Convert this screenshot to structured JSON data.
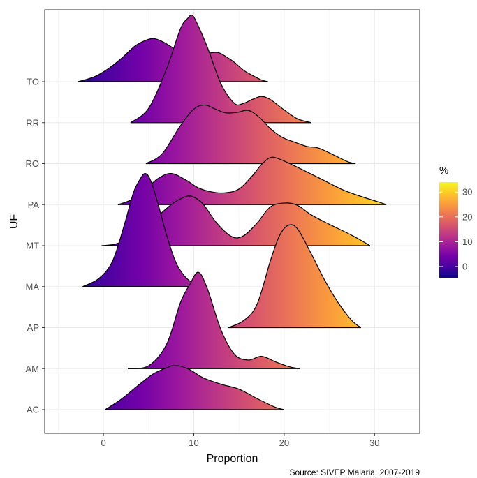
{
  "chart_data": {
    "type": "ridgeline",
    "title": "",
    "xlabel": "Proportion",
    "ylabel": "UF",
    "xlim": [
      -6.5,
      35
    ],
    "x_ticks": [
      0,
      10,
      20,
      30
    ],
    "categories": [
      "AC",
      "AM",
      "AP",
      "MA",
      "MT",
      "PA",
      "RO",
      "RR",
      "TO"
    ],
    "grid": true,
    "fill_scale": {
      "title": "%",
      "palette": "plasma",
      "range": [
        -4.5,
        34
      ],
      "ticks": [
        0,
        10,
        20,
        30
      ],
      "colors": [
        "#0d0887",
        "#46039f",
        "#7201a8",
        "#9c179e",
        "#bd3786",
        "#d8576b",
        "#ed7953",
        "#fb9f3a",
        "#fdca26",
        "#f0f921"
      ]
    },
    "caption": "Source: SIVEP Malaria. 2007-2019",
    "series": [
      {
        "name": "AC",
        "x": [
          0.2,
          2,
          4,
          5.5,
          7,
          8,
          9.5,
          11,
          13,
          15,
          17,
          19,
          20
        ],
        "height": [
          0,
          0.26,
          0.62,
          0.87,
          1.02,
          1.08,
          0.98,
          0.78,
          0.62,
          0.5,
          0.27,
          0.06,
          0
        ]
      },
      {
        "name": "AM",
        "x": [
          2.7,
          5,
          7,
          8.5,
          9.5,
          10.5,
          11.5,
          13,
          14.5,
          16,
          17.5,
          19,
          20.5,
          21.7
        ],
        "height": [
          0,
          0.07,
          0.6,
          1.6,
          2.03,
          2.35,
          1.95,
          0.95,
          0.35,
          0.21,
          0.3,
          0.17,
          0.05,
          0
        ]
      },
      {
        "name": "AP",
        "x": [
          13.8,
          15.5,
          17,
          18.5,
          19.5,
          20.5,
          21.5,
          23,
          24.5,
          26,
          27.5,
          28.5
        ],
        "height": [
          0,
          0.17,
          0.57,
          1.65,
          2.25,
          2.5,
          2.4,
          1.8,
          1.15,
          0.6,
          0.17,
          0
        ]
      },
      {
        "name": "MA",
        "x": [
          -2.3,
          -0.5,
          1,
          2.3,
          3.3,
          4,
          4.6,
          5.2,
          6,
          7,
          8,
          9,
          10,
          11
        ],
        "height": [
          0,
          0.2,
          0.62,
          1.5,
          2.28,
          2.6,
          2.76,
          2.6,
          2.05,
          1.25,
          0.6,
          0.25,
          0.08,
          0
        ]
      },
      {
        "name": "MT",
        "x": [
          -0.2,
          1.5,
          3.5,
          5.5,
          7.5,
          8.8,
          9.8,
          11,
          12.5,
          14.2,
          15.5,
          17,
          18.5,
          20.2,
          21.5,
          23,
          25,
          27.5,
          29.5
        ],
        "height": [
          0,
          0.05,
          0.26,
          0.62,
          1,
          1.17,
          1.2,
          1.02,
          0.56,
          0.22,
          0.24,
          0.55,
          0.95,
          1.04,
          0.98,
          0.75,
          0.52,
          0.25,
          0
        ]
      },
      {
        "name": "PA",
        "x": [
          1.6,
          3,
          4.5,
          6,
          7.5,
          9.2,
          10.5,
          12,
          13.5,
          15,
          16.5,
          17.5,
          18.5,
          19.5,
          21,
          22.5,
          24.5,
          26.5,
          28.5,
          30.5,
          31.3
        ],
        "height": [
          0,
          0.11,
          0.34,
          0.63,
          0.76,
          0.59,
          0.41,
          0.31,
          0.29,
          0.38,
          0.71,
          0.98,
          1.15,
          1.11,
          0.96,
          0.8,
          0.58,
          0.36,
          0.2,
          0.06,
          0
        ]
      },
      {
        "name": "RO",
        "x": [
          4.7,
          6.5,
          8.5,
          10,
          11.2,
          12.3,
          13.5,
          14.8,
          16,
          17.2,
          18.5,
          19.8,
          21.2,
          22.5,
          23.8,
          25.5,
          27,
          27.9
        ],
        "height": [
          0,
          0.24,
          0.92,
          1.33,
          1.43,
          1.34,
          1.24,
          1.25,
          1.3,
          1.14,
          0.85,
          0.64,
          0.52,
          0.42,
          0.38,
          0.21,
          0.05,
          0
        ]
      },
      {
        "name": "RR",
        "x": [
          3,
          5,
          7,
          8.5,
          9.3,
          9.8,
          10.3,
          11.5,
          13,
          14.5,
          15.5,
          16.5,
          17.5,
          18.5,
          20,
          21.5,
          23
        ],
        "height": [
          0,
          0.35,
          1.32,
          2.28,
          2.54,
          2.62,
          2.45,
          1.84,
          0.95,
          0.47,
          0.47,
          0.57,
          0.64,
          0.56,
          0.31,
          0.09,
          0
        ]
      },
      {
        "name": "TO",
        "x": [
          -2.8,
          -1,
          0.5,
          2,
          3.5,
          4.7,
          5.6,
          6.5,
          7.5,
          8.8,
          9.8,
          10.8,
          11.8,
          12.7,
          13.5,
          14.5,
          15.5,
          16.5,
          17.5,
          18.2
        ],
        "height": [
          0,
          0.12,
          0.31,
          0.57,
          0.87,
          1.01,
          1.05,
          0.98,
          0.85,
          0.67,
          0.61,
          0.63,
          0.7,
          0.71,
          0.62,
          0.47,
          0.28,
          0.15,
          0.04,
          0
        ]
      }
    ]
  }
}
